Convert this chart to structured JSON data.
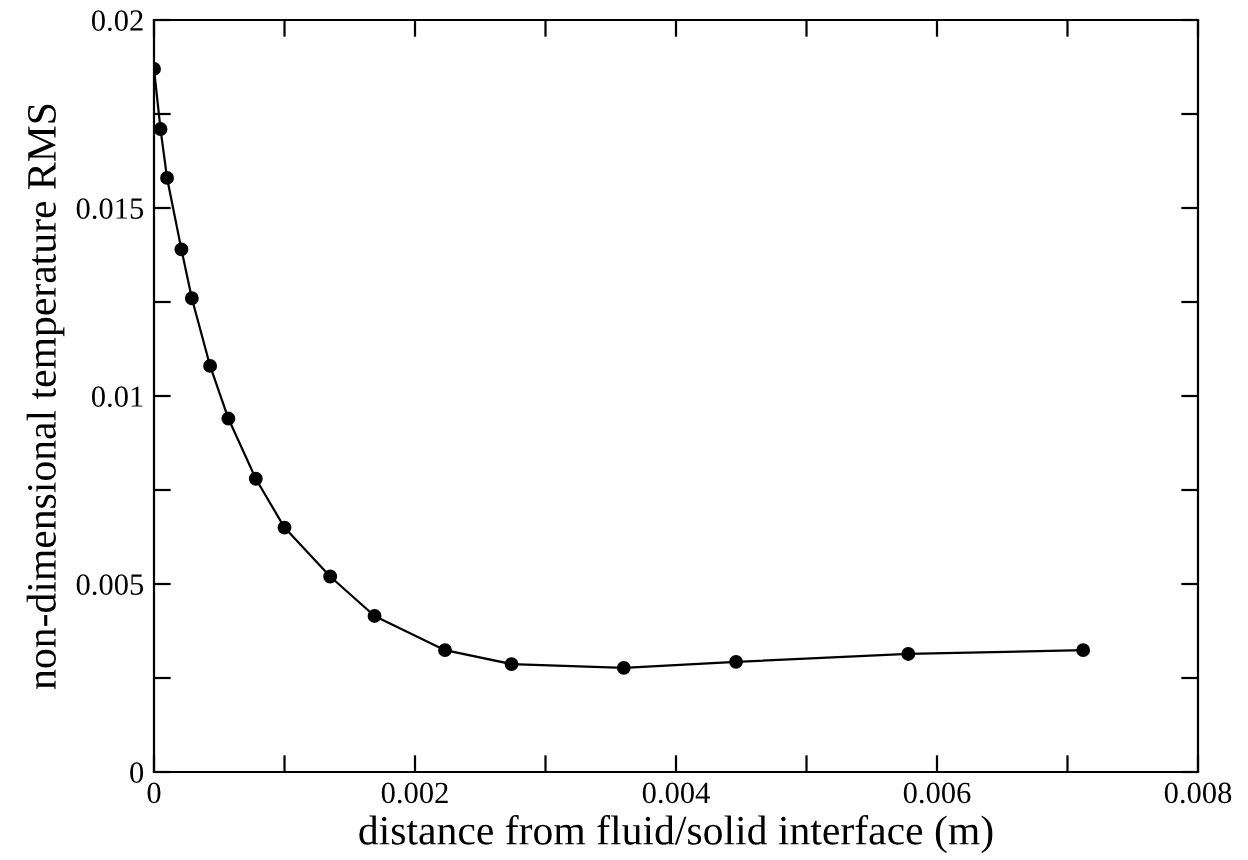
{
  "chart_data": {
    "type": "line",
    "xlabel": "distance from fluid/solid interface (m)",
    "ylabel": "non-dimensional temperature RMS",
    "x": [
      0,
      5e-05,
      0.0001,
      0.00021,
      0.00029,
      0.00043,
      0.00057,
      0.00078,
      0.001,
      0.00135,
      0.00169,
      0.00223,
      0.00274,
      0.0036,
      0.00446,
      0.00578,
      0.00712
    ],
    "series": [
      {
        "color": "#000000",
        "values": [
          0.0187,
          0.0171,
          0.0158,
          0.0139,
          0.0126,
          0.0108,
          0.0094,
          0.0078,
          0.0065,
          0.0052,
          0.00415,
          0.00324,
          0.00287,
          0.00277,
          0.00293,
          0.00314,
          0.00324
        ]
      }
    ],
    "marker": "circle",
    "line_style": "solid",
    "xlim": [
      0,
      0.008
    ],
    "xticks": [
      0,
      {
        "value": 0.001,
        "label": null
      },
      {
        "value": 0.002,
        "label": "0.002"
      },
      {
        "value": 0.003,
        "label": null
      },
      {
        "value": 0.004,
        "label": "0.004"
      },
      {
        "value": 0.005,
        "label": null
      },
      {
        "value": 0.006,
        "label": "0.006"
      },
      {
        "value": 0.007,
        "label": null
      },
      {
        "value": 0.008,
        "label": "0.008"
      }
    ],
    "ylim": [
      0,
      0.02
    ],
    "yticks": [
      0,
      {
        "value": 0.0025,
        "label": null
      },
      0.005,
      {
        "value": 0.0075,
        "label": null
      },
      0.01,
      {
        "value": 0.0125,
        "label": null
      },
      0.015,
      {
        "value": 0.0175,
        "label": null
      },
      0.02
    ],
    "grid": false,
    "legend": false
  }
}
